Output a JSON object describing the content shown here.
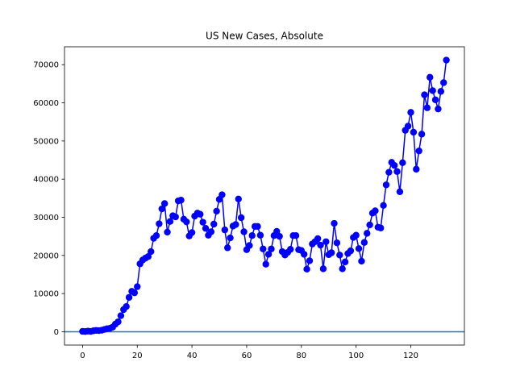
{
  "chart_data": {
    "type": "line",
    "title": "US New Cases, Absolute",
    "xlabel": "",
    "ylabel": "",
    "xlim": [
      -6.6,
      139.6
    ],
    "ylim": [
      -3500,
      74700
    ],
    "xticks": [
      0,
      20,
      40,
      60,
      80,
      100,
      120
    ],
    "yticks": [
      0,
      10000,
      20000,
      30000,
      40000,
      50000,
      60000,
      70000
    ],
    "grid": false,
    "series_color": "#0000ff",
    "baseline_color": "#1f77b4",
    "baseline_value": 0,
    "x": [
      0,
      1,
      2,
      3,
      4,
      5,
      6,
      7,
      8,
      9,
      10,
      11,
      12,
      13,
      14,
      15,
      16,
      17,
      18,
      19,
      20,
      21,
      22,
      23,
      24,
      25,
      26,
      27,
      28,
      29,
      30,
      31,
      32,
      33,
      34,
      35,
      36,
      37,
      38,
      39,
      40,
      41,
      42,
      43,
      44,
      45,
      46,
      47,
      48,
      49,
      50,
      51,
      52,
      53,
      54,
      55,
      56,
      57,
      58,
      59,
      60,
      61,
      62,
      63,
      64,
      65,
      66,
      67,
      68,
      69,
      70,
      71,
      72,
      73,
      74,
      75,
      76,
      77,
      78,
      79,
      80,
      81,
      82,
      83,
      84,
      85,
      86,
      87,
      88,
      89,
      90,
      91,
      92,
      93,
      94,
      95,
      96,
      97,
      98,
      99,
      100,
      101,
      102,
      103,
      104,
      105,
      106,
      107,
      108,
      109,
      110,
      111,
      112,
      113,
      114,
      115,
      116,
      117,
      118,
      119,
      120,
      121,
      122,
      123,
      124,
      125,
      126,
      127,
      128,
      129,
      130,
      131,
      132,
      133
    ],
    "values": [
      100,
      50,
      150,
      80,
      250,
      350,
      300,
      400,
      600,
      800,
      900,
      1200,
      2000,
      2600,
      4200,
      5800,
      6600,
      9000,
      10600,
      10200,
      11800,
      17800,
      18800,
      19300,
      19700,
      21000,
      24500,
      25200,
      28300,
      32200,
      33600,
      26100,
      28900,
      30400,
      30100,
      34300,
      34500,
      29500,
      28800,
      25100,
      26000,
      30300,
      31100,
      30800,
      28700,
      27100,
      25300,
      26200,
      28200,
      31600,
      34700,
      35900,
      26700,
      22000,
      24600,
      27700,
      28100,
      34800,
      29900,
      26200,
      21500,
      22600,
      25200,
      27600,
      27600,
      25300,
      21700,
      17700,
      20300,
      21700,
      25200,
      26300,
      25000,
      21000,
      20100,
      20800,
      21600,
      25200,
      25200,
      21500,
      21300,
      20300,
      16400,
      18600,
      23000,
      23600,
      24400,
      22700,
      16500,
      23600,
      20200,
      20700,
      28400,
      23300,
      20100,
      16500,
      18300,
      20500,
      21200,
      24700,
      25300,
      21800,
      18500,
      23400,
      25800,
      28000,
      31100,
      31700,
      27400,
      27200,
      33100,
      38500,
      41800,
      44400,
      43600,
      42000,
      36700,
      44300,
      52800,
      53900,
      57500,
      52300,
      42600,
      47400,
      51800,
      62100,
      58700,
      66700,
      63200,
      60800,
      58400,
      63000,
      65300,
      71200
    ]
  }
}
